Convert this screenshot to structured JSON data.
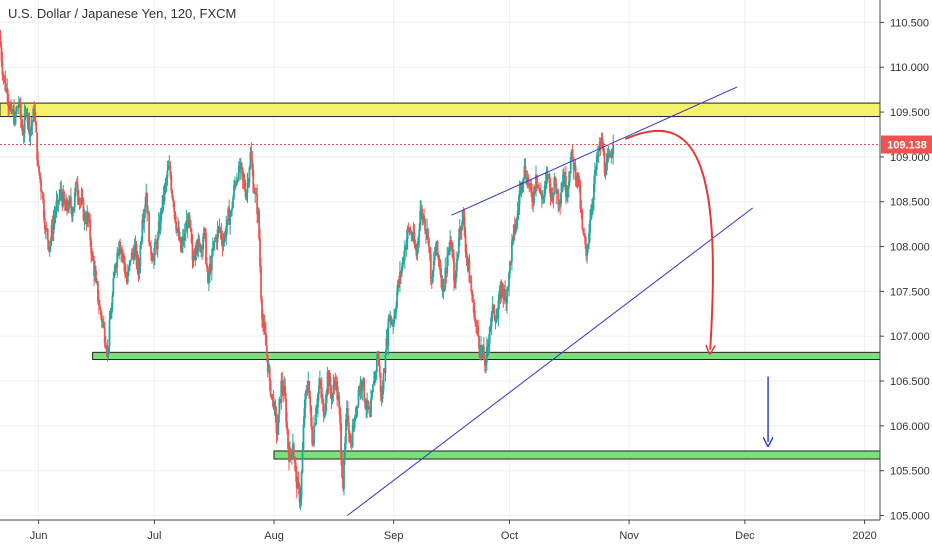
{
  "header": {
    "symbol_title": "U.S. Dollar / Japanese Yen, 120, FXCM"
  },
  "price_badge": "109.138",
  "chart_data": {
    "type": "candlestick",
    "ylim": [
      104.95,
      110.75
    ],
    "y_ticks": [
      "110.500",
      "110.000",
      "109.500",
      "109.000",
      "108.500",
      "108.000",
      "107.500",
      "107.000",
      "106.500",
      "106.000",
      "105.500",
      "105.000"
    ],
    "y_tick_values": [
      110.5,
      110.0,
      109.5,
      109.0,
      108.5,
      108.0,
      107.5,
      107.0,
      106.5,
      106.0,
      105.5,
      105.0
    ],
    "x_ticks": [
      "Jun",
      "Jul",
      "Aug",
      "Sep",
      "Oct",
      "Nov",
      "Dec",
      "2020"
    ],
    "x_tick_days": [
      31,
      61,
      92,
      123,
      153,
      184,
      214,
      245
    ],
    "x_day_range": [
      21,
      249
    ],
    "last_price": 109.138,
    "price_path": [
      [
        21,
        110.35
      ],
      [
        22,
        109.9
      ],
      [
        23,
        109.7
      ],
      [
        24,
        109.5
      ],
      [
        25,
        109.45
      ],
      [
        26,
        109.6
      ],
      [
        27,
        109.25
      ],
      [
        28,
        109.5
      ],
      [
        29,
        109.3
      ],
      [
        30,
        109.5
      ],
      [
        31,
        108.9
      ],
      [
        32,
        108.6
      ],
      [
        33,
        108.2
      ],
      [
        34,
        108.0
      ],
      [
        35,
        108.3
      ],
      [
        36,
        108.5
      ],
      [
        37,
        108.6
      ],
      [
        38,
        108.4
      ],
      [
        39,
        108.5
      ],
      [
        40,
        108.4
      ],
      [
        41,
        108.7
      ],
      [
        42,
        108.5
      ],
      [
        43,
        108.35
      ],
      [
        44,
        108.3
      ],
      [
        45,
        107.9
      ],
      [
        46,
        107.6
      ],
      [
        47,
        107.3
      ],
      [
        48,
        107.1
      ],
      [
        49,
        106.85
      ],
      [
        50,
        107.3
      ],
      [
        51,
        107.8
      ],
      [
        52,
        108.05
      ],
      [
        53,
        107.9
      ],
      [
        54,
        107.6
      ],
      [
        55,
        107.85
      ],
      [
        56,
        108.0
      ],
      [
        57,
        107.7
      ],
      [
        58,
        108.3
      ],
      [
        59,
        108.6
      ],
      [
        60,
        108.0
      ],
      [
        61,
        107.9
      ],
      [
        62,
        108.1
      ],
      [
        63,
        108.4
      ],
      [
        64,
        108.7
      ],
      [
        65,
        108.9
      ],
      [
        66,
        108.5
      ],
      [
        67,
        108.2
      ],
      [
        68,
        107.95
      ],
      [
        69,
        108.15
      ],
      [
        70,
        108.35
      ],
      [
        71,
        107.85
      ],
      [
        72,
        108.05
      ],
      [
        73,
        107.95
      ],
      [
        74,
        108.2
      ],
      [
        75,
        107.6
      ],
      [
        76,
        107.9
      ],
      [
        77,
        108.1
      ],
      [
        78,
        108.2
      ],
      [
        79,
        108.05
      ],
      [
        80,
        108.3
      ],
      [
        81,
        108.4
      ],
      [
        82,
        108.7
      ],
      [
        83,
        108.9
      ],
      [
        84,
        108.75
      ],
      [
        85,
        108.6
      ],
      [
        86,
        109.05
      ],
      [
        87,
        108.6
      ],
      [
        88,
        108.4
      ],
      [
        89,
        107.2
      ],
      [
        90,
        106.9
      ],
      [
        91,
        106.5
      ],
      [
        92,
        106.2
      ],
      [
        93,
        105.9
      ],
      [
        94,
        106.5
      ],
      [
        95,
        106.3
      ],
      [
        96,
        105.6
      ],
      [
        97,
        105.8
      ],
      [
        98,
        105.3
      ],
      [
        99,
        105.2
      ],
      [
        100,
        106.2
      ],
      [
        101,
        106.5
      ],
      [
        102,
        105.8
      ],
      [
        103,
        106.2
      ],
      [
        104,
        106.5
      ],
      [
        105,
        106.1
      ],
      [
        106,
        106.6
      ],
      [
        107,
        106.3
      ],
      [
        108,
        106.5
      ],
      [
        109,
        106.2
      ],
      [
        110,
        105.3
      ],
      [
        111,
        106.2
      ],
      [
        112,
        105.8
      ],
      [
        113,
        106.1
      ],
      [
        114,
        106.4
      ],
      [
        115,
        106.5
      ],
      [
        116,
        106.2
      ],
      [
        117,
        106.1
      ],
      [
        118,
        106.5
      ],
      [
        119,
        106.8
      ],
      [
        120,
        106.3
      ],
      [
        121,
        106.8
      ],
      [
        122,
        107.2
      ],
      [
        123,
        107.15
      ],
      [
        124,
        107.5
      ],
      [
        125,
        107.7
      ],
      [
        126,
        108.0
      ],
      [
        127,
        108.2
      ],
      [
        128,
        108.1
      ],
      [
        129,
        107.9
      ],
      [
        130,
        108.4
      ],
      [
        131,
        108.3
      ],
      [
        132,
        108.1
      ],
      [
        133,
        107.6
      ],
      [
        134,
        108.0
      ],
      [
        135,
        107.8
      ],
      [
        136,
        107.5
      ],
      [
        137,
        107.9
      ],
      [
        138,
        108.0
      ],
      [
        139,
        107.6
      ],
      [
        140,
        108.1
      ],
      [
        141,
        108.4
      ],
      [
        142,
        107.9
      ],
      [
        143,
        107.6
      ],
      [
        144,
        107.2
      ],
      [
        145,
        107.0
      ],
      [
        146,
        106.8
      ],
      [
        147,
        106.7
      ],
      [
        148,
        107.1
      ],
      [
        149,
        107.3
      ],
      [
        150,
        107.2
      ],
      [
        151,
        107.6
      ],
      [
        152,
        107.4
      ],
      [
        153,
        107.7
      ],
      [
        154,
        108.1
      ],
      [
        155,
        108.3
      ],
      [
        156,
        108.7
      ],
      [
        157,
        108.9
      ],
      [
        158,
        108.7
      ],
      [
        159,
        108.5
      ],
      [
        160,
        108.8
      ],
      [
        161,
        108.6
      ],
      [
        162,
        108.55
      ],
      [
        163,
        108.8
      ],
      [
        164,
        108.6
      ],
      [
        165,
        108.7
      ],
      [
        166,
        108.5
      ],
      [
        167,
        108.8
      ],
      [
        168,
        108.6
      ],
      [
        169,
        109.0
      ],
      [
        170,
        108.9
      ],
      [
        171,
        108.7
      ],
      [
        172,
        108.2
      ],
      [
        173,
        107.9
      ],
      [
        174,
        108.3
      ],
      [
        175,
        108.7
      ],
      [
        176,
        109.0
      ],
      [
        177,
        109.2
      ],
      [
        178,
        108.8
      ],
      [
        179,
        109.0
      ],
      [
        180,
        109.14
      ]
    ],
    "zones": [
      {
        "kind": "resistance",
        "color": "#f4f16a",
        "from": 109.6,
        "to": 109.45,
        "day_start": 21,
        "day_end": 249
      },
      {
        "kind": "support",
        "color": "#7be07b",
        "from": 106.82,
        "to": 106.74,
        "day_start": 45,
        "day_end": 249
      },
      {
        "kind": "support",
        "color": "#7be07b",
        "from": 105.72,
        "to": 105.63,
        "day_start": 92,
        "day_end": 249
      }
    ],
    "trendlines": [
      {
        "from": [
          138,
          108.35
        ],
        "to": [
          212,
          109.78
        ],
        "color": "#3333cc"
      },
      {
        "from": [
          111,
          105.0
        ],
        "to": [
          216,
          108.43
        ],
        "color": "#3333cc"
      }
    ],
    "projection_arrows": [
      {
        "color": "#e53935",
        "start": [
          183,
          109.2
        ],
        "end": [
          205,
          106.85
        ]
      },
      {
        "color": "#3344bb",
        "start": [
          220,
          106.55
        ],
        "end": [
          220,
          105.82
        ]
      }
    ],
    "colors": {
      "up": "#26a69a",
      "down": "#ef5350",
      "price_line": "#ef5350",
      "badge": "#ef5350"
    }
  }
}
